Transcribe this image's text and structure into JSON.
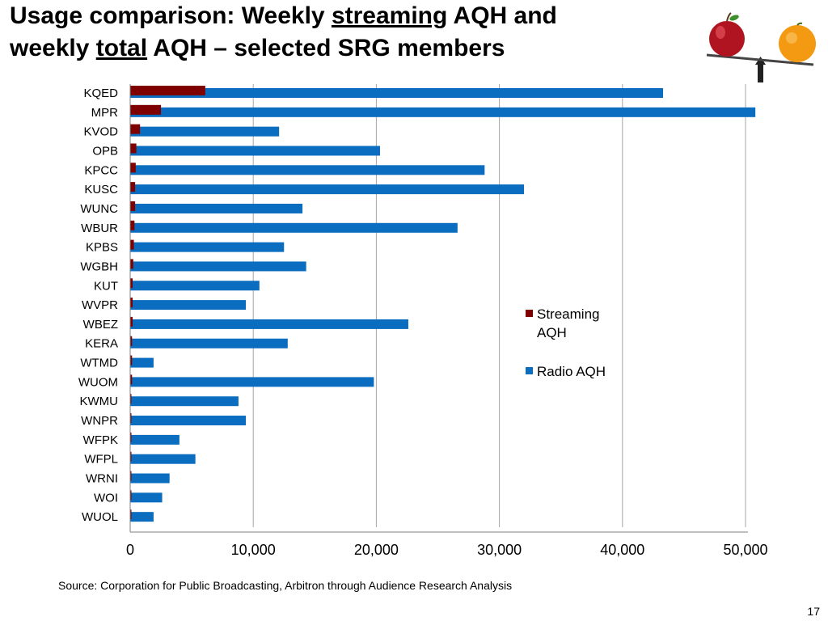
{
  "slide": {
    "title_parts": {
      "p1": "Usage comparison: Weekly ",
      "p2": "streaming",
      "p3": " AQH and",
      "p4": "weekly ",
      "p5": "total",
      "p6": " AQH – selected SRG members"
    },
    "source": "Source: Corporation for Public Broadcasting, Arbitron through Audience Research Analysis",
    "page_number": "17",
    "logo_icon": "apple-orange-balance-icon"
  },
  "colors": {
    "streaming": "#7f0000",
    "radio": "#0b6dbf",
    "grid": "#a6a6a6"
  },
  "chart_data": {
    "type": "bar",
    "orientation": "horizontal",
    "categories": [
      "KQED",
      "MPR",
      "KVOD",
      "OPB",
      "KPCC",
      "KUSC",
      "WUNC",
      "WBUR",
      "KPBS",
      "WGBH",
      "KUT",
      "WVPR",
      "WBEZ",
      "KERA",
      "WTMD",
      "WUOM",
      "KWMU",
      "WNPR",
      "WFPK",
      "WFPL",
      "WRNI",
      "WOI",
      "WUOL"
    ],
    "series": [
      {
        "name": "Radio AQH",
        "values": [
          43300,
          50800,
          12100,
          20300,
          28800,
          32000,
          14000,
          26600,
          12500,
          14300,
          10500,
          9400,
          22600,
          12800,
          1900,
          19800,
          8800,
          9400,
          4000,
          5300,
          3200,
          2600,
          1900
        ]
      },
      {
        "name_lines": [
          "Streaming",
          "AQH"
        ],
        "name": "Streaming AQH",
        "values": [
          6100,
          2500,
          800,
          500,
          450,
          400,
          400,
          350,
          300,
          250,
          200,
          200,
          200,
          150,
          150,
          150,
          100,
          100,
          100,
          100,
          80,
          80,
          80
        ]
      }
    ],
    "xlim": [
      0,
      52000
    ],
    "xticks": [
      "0",
      "10,000",
      "20,000",
      "30,000",
      "40,000",
      "50,000"
    ],
    "xtick_values": [
      0,
      10000,
      20000,
      30000,
      40000,
      50000
    ],
    "grid": true,
    "legend_position": "right",
    "xlabel": "",
    "ylabel": ""
  }
}
